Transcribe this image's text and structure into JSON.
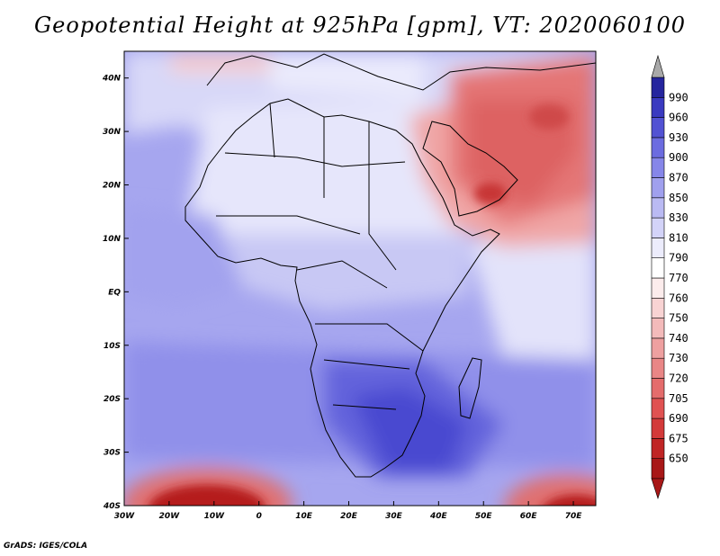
{
  "title": "Geopotential Height at 925hPa [gpm], VT: 2020060100",
  "footer": "GrADS: IGES/COLA",
  "map": {
    "variable": "Geopotential Height",
    "level": "925hPa",
    "units": "gpm",
    "valid_time": "2020060100",
    "lon_ticks": [
      "30W",
      "20W",
      "10W",
      "0",
      "10E",
      "20E",
      "30E",
      "40E",
      "50E",
      "60E",
      "70E"
    ],
    "lat_ticks": [
      "40S",
      "30S",
      "20S",
      "10S",
      "EQ",
      "10N",
      "20N",
      "30N",
      "40N"
    ],
    "lon_values": [
      -30,
      -20,
      -10,
      0,
      10,
      20,
      30,
      40,
      50,
      60,
      70
    ],
    "lat_values": [
      -40,
      -30,
      -20,
      -10,
      0,
      10,
      20,
      30,
      40
    ]
  },
  "colorbar": {
    "labels": [
      "650",
      "675",
      "690",
      "705",
      "720",
      "730",
      "740",
      "750",
      "760",
      "770",
      "790",
      "810",
      "830",
      "850",
      "870",
      "900",
      "930",
      "960",
      "990"
    ],
    "colors": [
      "#a81818",
      "#c02525",
      "#d33a3a",
      "#e05252",
      "#e46c6c",
      "#e98686",
      "#eea0a0",
      "#f3baba",
      "#f8d3d3",
      "#fcecec",
      "#ffffff",
      "#ececfc",
      "#d3d3f8",
      "#babaf3",
      "#a0a0ee",
      "#8686e9",
      "#6c6ce0",
      "#5252d3",
      "#3a3ac0",
      "#25259e",
      "#1a1a80"
    ],
    "under_color": "#a81818",
    "over_color": "#a9a9a9"
  }
}
